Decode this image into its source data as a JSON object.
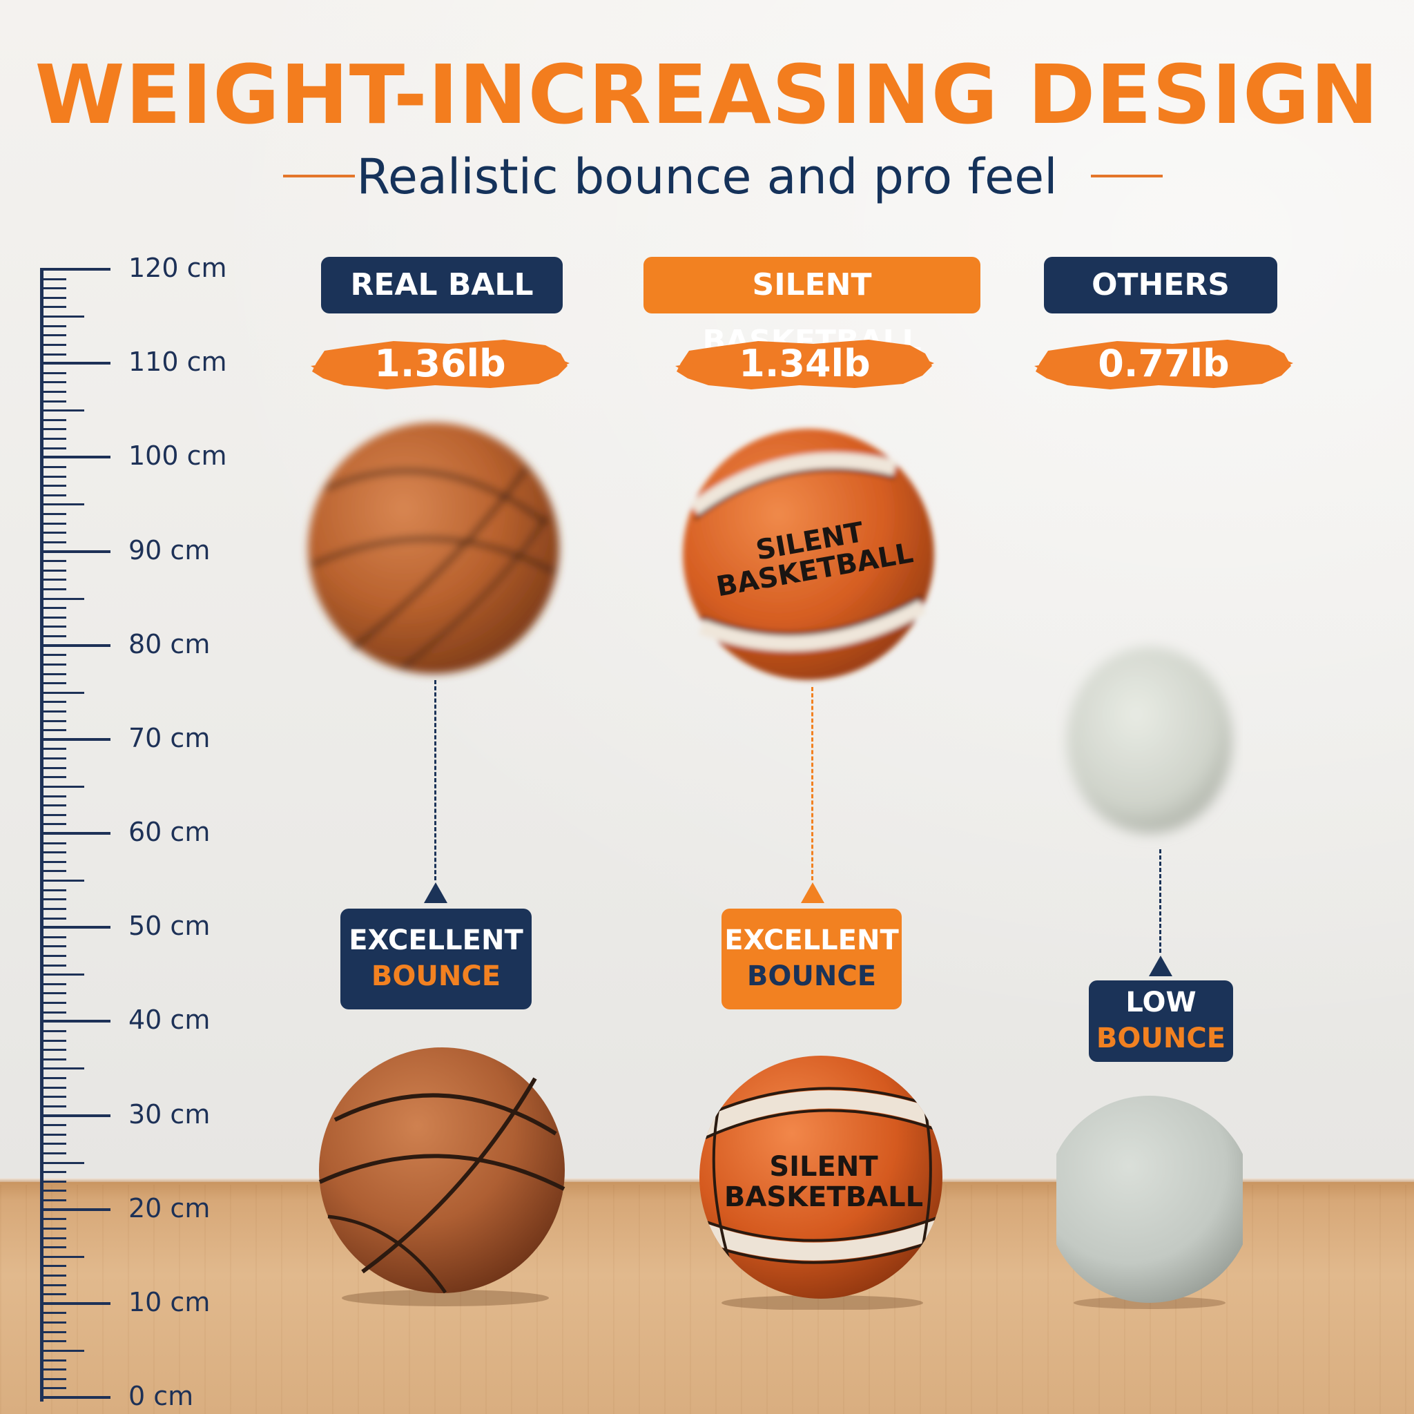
{
  "title": "WEIGHT-INCREASING DESIGN",
  "subtitle": "Realistic bounce and pro feel",
  "ruler": {
    "labels": [
      "120 cm",
      "110 cm",
      "100 cm",
      "90 cm",
      "80 cm",
      "70 cm",
      "60 cm",
      "50 cm",
      "40 cm",
      "30 cm",
      "20 cm",
      "10 cm",
      "0 cm"
    ]
  },
  "columns": [
    {
      "name": "REAL BALL",
      "weight": "1.36lb",
      "bounce_line1": "EXCELLENT",
      "bounce_line2": "BOUNCE",
      "header_color": "#1b3358",
      "badge_color": "#1b3358"
    },
    {
      "name": "SILENT BASKETBALL",
      "weight": "1.34lb",
      "bounce_line1": "EXCELLENT",
      "bounce_line2": "BOUNCE",
      "header_color": "#f28121",
      "badge_color": "#f28121",
      "ball_print_line1": "SILENT",
      "ball_print_line2": "BASKETBALL"
    },
    {
      "name": "OTHERS",
      "weight": "0.77lb",
      "bounce_line1": "LOW",
      "bounce_line2": "BOUNCE",
      "header_color": "#1b3358",
      "badge_color": "#1b3358"
    }
  ],
  "colors": {
    "accent_orange": "#f37d1e",
    "navy": "#15325a",
    "brush_orange": "#f07b24"
  }
}
